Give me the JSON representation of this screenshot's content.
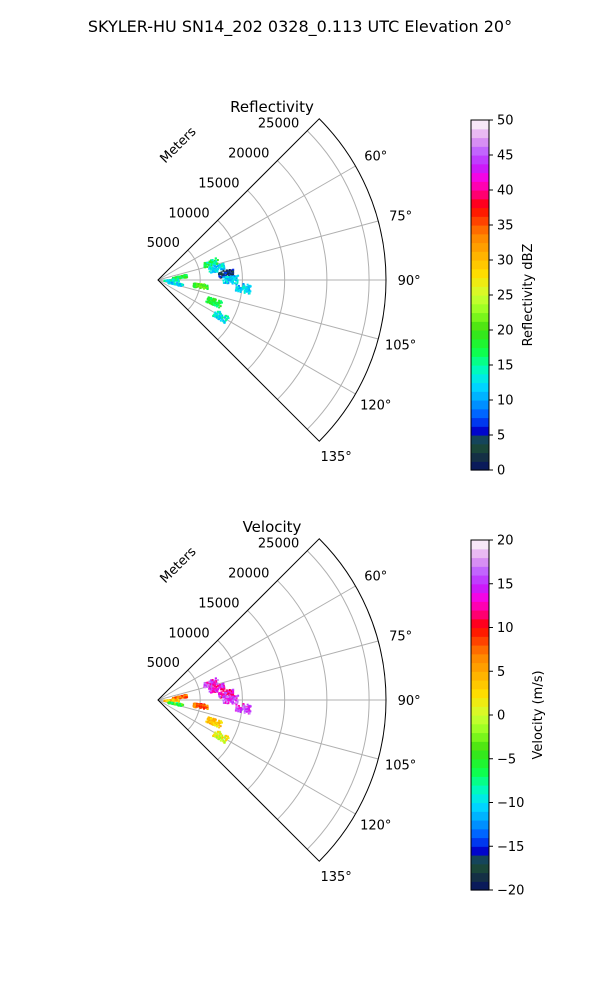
{
  "figure_title": "SKYLER-HU  SN14_202  0328_0.113 UTC Elevation 20°",
  "chart_data": [
    {
      "type": "polar-sector-scatter",
      "title": "Reflectivity",
      "radial_label": "Meters",
      "radial_ticks": [
        5000,
        10000,
        15000,
        20000,
        25000
      ],
      "radial_range": [
        0,
        27000
      ],
      "angle_range_deg": [
        45,
        135
      ],
      "angle_ticks": [
        "60°",
        "75°",
        "90°",
        "105°",
        "120°",
        "135°"
      ],
      "angle_tick_values": [
        60,
        75,
        90,
        105,
        120,
        135
      ],
      "grid": true,
      "colorbar": {
        "label": "Reflectivity dBZ",
        "ticks": [
          "0",
          "5",
          "10",
          "15",
          "20",
          "25",
          "30",
          "35",
          "40",
          "45",
          "50"
        ],
        "range": [
          0,
          50
        ]
      },
      "clusters": [
        {
          "az": 71,
          "range": 6500,
          "value": 16
        },
        {
          "az": 78,
          "range": 7000,
          "value": 12
        },
        {
          "az": 84,
          "range": 8000,
          "value": 4
        },
        {
          "az": 80,
          "range": 2500,
          "value": 18
        },
        {
          "az": 88,
          "range": 1500,
          "value": 13
        },
        {
          "az": 100,
          "range": 2000,
          "value": 12
        },
        {
          "az": 97,
          "range": 5000,
          "value": 20
        },
        {
          "az": 111,
          "range": 7000,
          "value": 18
        },
        {
          "az": 120,
          "range": 8500,
          "value": 13
        },
        {
          "az": 89,
          "range": 8500,
          "value": 11
        },
        {
          "az": 95,
          "range": 10000,
          "value": 11
        }
      ]
    },
    {
      "type": "polar-sector-scatter",
      "title": "Velocity",
      "radial_label": "Meters",
      "radial_ticks": [
        5000,
        10000,
        15000,
        20000,
        25000
      ],
      "radial_range": [
        0,
        27000
      ],
      "angle_range_deg": [
        45,
        135
      ],
      "angle_ticks": [
        "60°",
        "75°",
        "90°",
        "105°",
        "120°",
        "135°"
      ],
      "angle_tick_values": [
        60,
        75,
        90,
        105,
        120,
        135
      ],
      "grid": true,
      "colorbar": {
        "label": "Velocity (m/s)",
        "ticks": [
          "−20",
          "−15",
          "−10",
          "−5",
          "0",
          "5",
          "10",
          "15",
          "20"
        ],
        "range": [
          -20,
          20
        ]
      },
      "clusters": [
        {
          "az": 71,
          "range": 6500,
          "value": 15
        },
        {
          "az": 78,
          "range": 7000,
          "value": 14
        },
        {
          "az": 84,
          "range": 8000,
          "value": 14
        },
        {
          "az": 80,
          "range": 2500,
          "value": 8
        },
        {
          "az": 88,
          "range": 1500,
          "value": 3
        },
        {
          "az": 100,
          "range": 2000,
          "value": -5
        },
        {
          "az": 97,
          "range": 5000,
          "value": 8
        },
        {
          "az": 111,
          "range": 7000,
          "value": 4
        },
        {
          "az": 120,
          "range": 8500,
          "value": 1
        },
        {
          "az": 89,
          "range": 8500,
          "value": 15
        },
        {
          "az": 95,
          "range": 10000,
          "value": 15
        }
      ]
    }
  ]
}
